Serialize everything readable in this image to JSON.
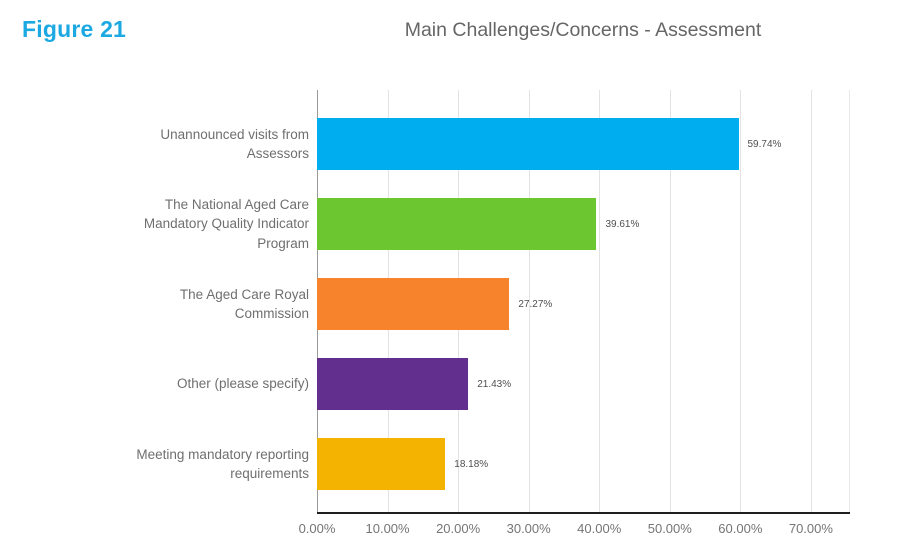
{
  "figure_label": "Figure 21",
  "figure_label_color": "#1CA9E1",
  "chart_data": {
    "type": "bar",
    "orientation": "horizontal",
    "title": "Main Challenges/Concerns - Assessment",
    "categories": [
      "Unannounced visits from Assessors",
      "The National Aged Care Mandatory Quality Indicator Program",
      "The Aged Care Royal Commission",
      "Other (please specify)",
      "Meeting mandatory reporting requirements"
    ],
    "values": [
      59.74,
      39.61,
      27.27,
      21.43,
      18.18
    ],
    "value_labels": [
      "59.74%",
      "39.61%",
      "27.27%",
      "21.43%",
      "18.18%"
    ],
    "bar_colors": [
      "#00AEEF",
      "#6CC62F",
      "#F8832D",
      "#622F8F",
      "#F5B301"
    ],
    "x_ticks": [
      "0.00%",
      "10.00%",
      "20.00%",
      "30.00%",
      "40.00%",
      "50.00%",
      "60.00%",
      "70.00%"
    ],
    "x_tick_values": [
      0,
      10,
      20,
      30,
      40,
      50,
      60,
      70
    ],
    "xlabel": "",
    "ylabel": "",
    "xlim": [
      0,
      70
    ],
    "x_scale_max": 75.4,
    "grid": true,
    "legend": false
  }
}
